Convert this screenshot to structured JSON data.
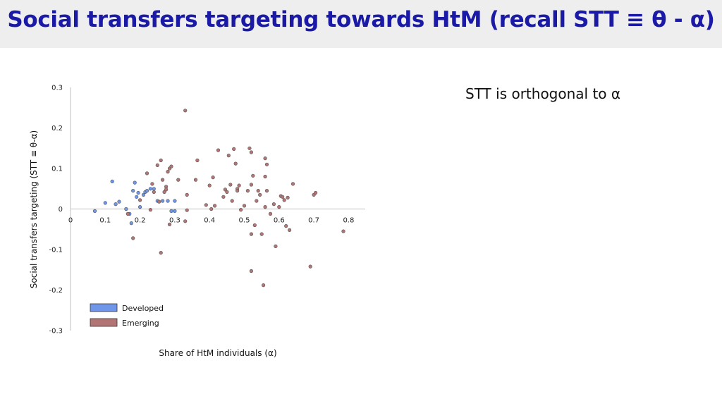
{
  "title": "Social transfers targeting towards HtM (recall STT ≡ θ - α)",
  "side_note": "STT is orthogonal to α",
  "colors": {
    "developed": "#6f96e8",
    "emerging": "#b37474",
    "title": "#1a1aa6"
  },
  "chart_data": {
    "type": "scatter",
    "title": "",
    "xlabel": "Share of HtM individuals (α)",
    "ylabel": "Social transfers targeting (STT ≡ θ-α)",
    "xlim": [
      0,
      0.85
    ],
    "ylim": [
      -0.3,
      0.3
    ],
    "x_ticks": [
      {
        "v": 0,
        "label": "0"
      },
      {
        "v": 0.1,
        "label": "0.1"
      },
      {
        "v": 0.2,
        "label": "0.2"
      },
      {
        "v": 0.3,
        "label": "0.3"
      },
      {
        "v": 0.4,
        "label": "0.4"
      },
      {
        "v": 0.5,
        "label": "0.5"
      },
      {
        "v": 0.6,
        "label": "0.6"
      },
      {
        "v": 0.7,
        "label": "0.7"
      },
      {
        "v": 0.8,
        "label": "0.8"
      }
    ],
    "y_ticks": [
      {
        "v": 0.3,
        "label": "0.3"
      },
      {
        "v": 0.2,
        "label": "0.2"
      },
      {
        "v": 0.1,
        "label": "0.1"
      },
      {
        "v": 0,
        "label": "0"
      },
      {
        "v": -0.1,
        "label": "-0.1"
      },
      {
        "v": -0.2,
        "label": "-0.2"
      },
      {
        "v": -0.3,
        "label": "-0.3"
      }
    ],
    "grid": false,
    "legend_position": "bottom-left",
    "series": [
      {
        "name": "Developed",
        "color": "#6f96e8",
        "points": [
          [
            0.07,
            -0.005
          ],
          [
            0.1,
            0.015
          ],
          [
            0.12,
            0.068
          ],
          [
            0.13,
            0.012
          ],
          [
            0.14,
            0.018
          ],
          [
            0.16,
            0.0
          ],
          [
            0.17,
            -0.012
          ],
          [
            0.175,
            -0.035
          ],
          [
            0.18,
            0.045
          ],
          [
            0.185,
            0.065
          ],
          [
            0.19,
            0.03
          ],
          [
            0.195,
            0.04
          ],
          [
            0.2,
            0.005
          ],
          [
            0.21,
            0.035
          ],
          [
            0.215,
            0.042
          ],
          [
            0.22,
            0.045
          ],
          [
            0.23,
            0.05
          ],
          [
            0.24,
            0.05
          ],
          [
            0.25,
            0.02
          ],
          [
            0.265,
            0.02
          ],
          [
            0.28,
            0.02
          ],
          [
            0.29,
            -0.005
          ],
          [
            0.3,
            0.02
          ],
          [
            0.3,
            -0.005
          ]
        ]
      },
      {
        "name": "Emerging",
        "color": "#b37474",
        "points": [
          [
            0.165,
            -0.012
          ],
          [
            0.18,
            -0.072
          ],
          [
            0.2,
            0.022
          ],
          [
            0.22,
            0.088
          ],
          [
            0.23,
            -0.002
          ],
          [
            0.235,
            0.062
          ],
          [
            0.24,
            0.042
          ],
          [
            0.25,
            0.108
          ],
          [
            0.255,
            0.018
          ],
          [
            0.26,
            -0.108
          ],
          [
            0.26,
            0.12
          ],
          [
            0.265,
            0.072
          ],
          [
            0.27,
            0.042
          ],
          [
            0.275,
            0.055
          ],
          [
            0.275,
            0.048
          ],
          [
            0.28,
            0.092
          ],
          [
            0.285,
            -0.038
          ],
          [
            0.285,
            0.1
          ],
          [
            0.29,
            0.105
          ],
          [
            0.31,
            0.072
          ],
          [
            0.33,
            0.243
          ],
          [
            0.33,
            -0.03
          ],
          [
            0.335,
            0.035
          ],
          [
            0.335,
            -0.003
          ],
          [
            0.36,
            0.072
          ],
          [
            0.365,
            0.12
          ],
          [
            0.39,
            0.01
          ],
          [
            0.4,
            0.058
          ],
          [
            0.405,
            0.0
          ],
          [
            0.41,
            0.078
          ],
          [
            0.415,
            0.008
          ],
          [
            0.425,
            0.145
          ],
          [
            0.44,
            0.03
          ],
          [
            0.445,
            0.048
          ],
          [
            0.45,
            0.042
          ],
          [
            0.455,
            0.132
          ],
          [
            0.46,
            0.06
          ],
          [
            0.465,
            0.02
          ],
          [
            0.47,
            0.148
          ],
          [
            0.475,
            0.112
          ],
          [
            0.48,
            0.05
          ],
          [
            0.48,
            0.045
          ],
          [
            0.485,
            0.058
          ],
          [
            0.49,
            -0.002
          ],
          [
            0.5,
            0.008
          ],
          [
            0.51,
            0.045
          ],
          [
            0.515,
            0.15
          ],
          [
            0.52,
            0.14
          ],
          [
            0.52,
            0.06
          ],
          [
            0.52,
            -0.062
          ],
          [
            0.52,
            -0.153
          ],
          [
            0.525,
            0.082
          ],
          [
            0.53,
            -0.04
          ],
          [
            0.535,
            0.02
          ],
          [
            0.54,
            0.045
          ],
          [
            0.545,
            0.035
          ],
          [
            0.55,
            -0.062
          ],
          [
            0.555,
            -0.188
          ],
          [
            0.56,
            0.005
          ],
          [
            0.56,
            0.125
          ],
          [
            0.56,
            0.08
          ],
          [
            0.565,
            0.11
          ],
          [
            0.565,
            0.045
          ],
          [
            0.575,
            -0.012
          ],
          [
            0.585,
            0.012
          ],
          [
            0.59,
            -0.092
          ],
          [
            0.6,
            0.005
          ],
          [
            0.605,
            0.032
          ],
          [
            0.61,
            0.03
          ],
          [
            0.615,
            0.022
          ],
          [
            0.62,
            -0.042
          ],
          [
            0.625,
            0.028
          ],
          [
            0.63,
            -0.052
          ],
          [
            0.64,
            0.062
          ],
          [
            0.69,
            -0.142
          ],
          [
            0.7,
            0.035
          ],
          [
            0.705,
            0.04
          ],
          [
            0.785,
            -0.055
          ]
        ]
      }
    ]
  }
}
